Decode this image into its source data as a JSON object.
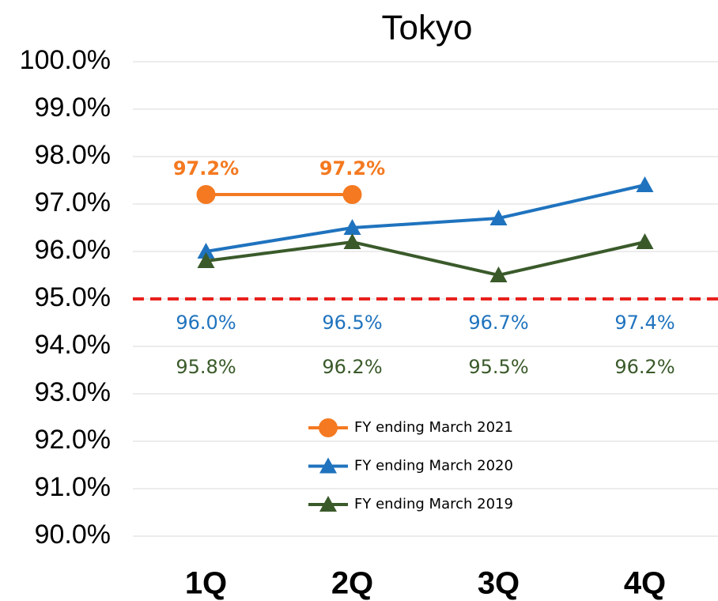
{
  "chart_data": {
    "type": "line",
    "title": "Tokyo",
    "categories": [
      "1Q",
      "2Q",
      "3Q",
      "4Q"
    ],
    "series": [
      {
        "name": "FY ending March 2021",
        "color": "#f47920",
        "marker": "circle",
        "values": [
          97.2,
          97.2,
          null,
          null
        ],
        "value_labels": [
          "97.2%",
          "97.2%",
          null,
          null
        ]
      },
      {
        "name": "FY ending March 2020",
        "color": "#1f73be",
        "marker": "triangle",
        "values": [
          96.0,
          96.5,
          96.7,
          97.4
        ],
        "value_labels": [
          "96.0%",
          "96.5%",
          "96.7%",
          "97.4%"
        ]
      },
      {
        "name": "FY ending March 2019",
        "color": "#3a5a2a",
        "marker": "triangle",
        "values": [
          95.8,
          96.2,
          95.5,
          96.2
        ],
        "value_labels": [
          "95.8%",
          "96.2%",
          "95.5%",
          "96.2%"
        ]
      }
    ],
    "ylim": [
      90,
      100
    ],
    "yticks": [
      {
        "value": 90,
        "label": "90.0%"
      },
      {
        "value": 91,
        "label": "91.0%"
      },
      {
        "value": 92,
        "label": "92.0%"
      },
      {
        "value": 93,
        "label": "93.0%"
      },
      {
        "value": 94,
        "label": "94.0%"
      },
      {
        "value": 95,
        "label": "95.0%"
      },
      {
        "value": 96,
        "label": "96.0%"
      },
      {
        "value": 97,
        "label": "97.0%"
      },
      {
        "value": 98,
        "label": "98.0%"
      },
      {
        "value": 99,
        "label": "99.0%"
      },
      {
        "value": 100,
        "label": "100.0%"
      }
    ],
    "grid": true,
    "reference_line": {
      "value": 95,
      "color": "#e8201c"
    }
  }
}
